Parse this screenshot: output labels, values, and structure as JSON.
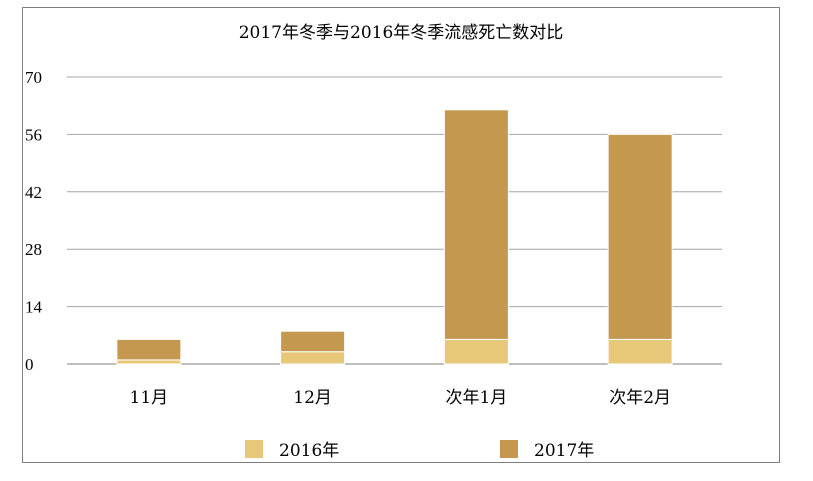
{
  "chart_data": {
    "type": "bar",
    "stacked": true,
    "title": "2017年冬季与2016年冬季流感死亡数对比",
    "xlabel": "",
    "ylabel": "",
    "categories": [
      "11月",
      "12月",
      "次年1月",
      "次年2月"
    ],
    "yticks": [
      "0",
      "14",
      "28",
      "42",
      "56",
      "70"
    ],
    "ylim": [
      0,
      70
    ],
    "grid": true,
    "legend_position": "bottom",
    "series": [
      {
        "name": "2016年",
        "color": "#e6c878",
        "values": [
          1,
          3,
          6,
          6
        ]
      },
      {
        "name": "2017年",
        "color": "#c4984f",
        "values": [
          5,
          5,
          56,
          50
        ]
      }
    ]
  }
}
